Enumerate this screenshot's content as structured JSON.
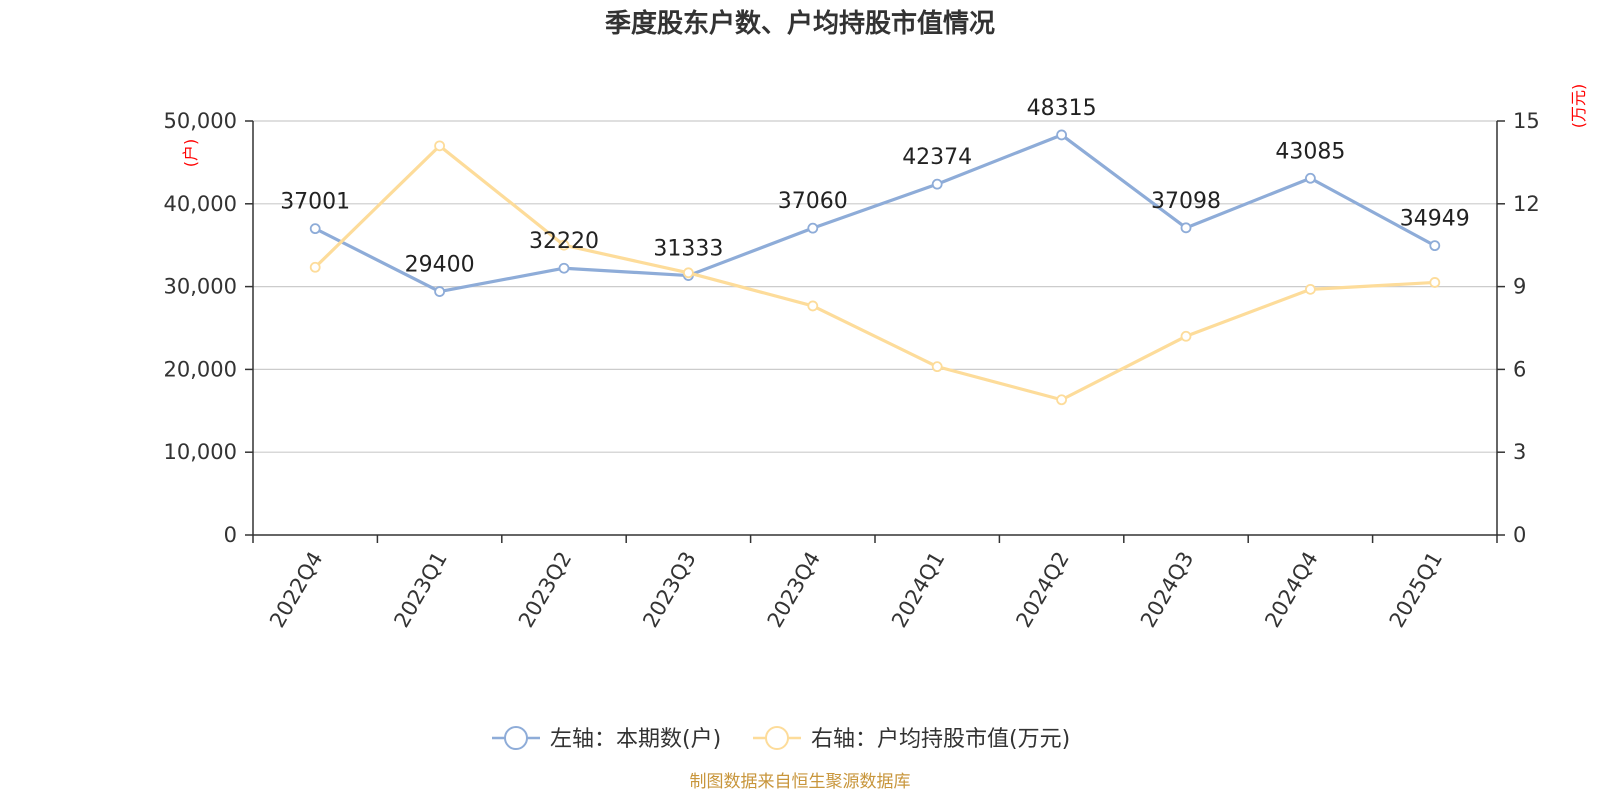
{
  "chart_data": {
    "type": "line",
    "title": "季度股东户数、户均持股市值情况",
    "categories": [
      "2022Q4",
      "2023Q1",
      "2023Q2",
      "2023Q3",
      "2023Q4",
      "2024Q1",
      "2024Q2",
      "2024Q3",
      "2024Q4",
      "2025Q1"
    ],
    "y_left": {
      "unit": "(户)",
      "ticks": [
        "0",
        "10,000",
        "20,000",
        "30,000",
        "40,000",
        "50,000"
      ],
      "lim": [
        0,
        50000
      ]
    },
    "y_right": {
      "unit": "(万元)",
      "ticks": [
        "0",
        "3",
        "6",
        "9",
        "12",
        "15"
      ],
      "lim": [
        0,
        15
      ]
    },
    "series": [
      {
        "name": "左轴：本期数(户)",
        "axis": "left",
        "color": "#8eacd8",
        "values": [
          37001,
          29400,
          32220,
          31333,
          37060,
          42374,
          48315,
          37098,
          43085,
          34949
        ],
        "labels": [
          "37001",
          "29400",
          "32220",
          "31333",
          "37060",
          "42374",
          "48315",
          "37098",
          "43085",
          "34949"
        ]
      },
      {
        "name": "右轴：户均持股市值(万元)",
        "axis": "right",
        "color": "#fddc9a",
        "values": [
          9.7,
          14.1,
          10.5,
          9.5,
          8.3,
          6.1,
          4.9,
          7.2,
          8.9,
          9.15
        ]
      }
    ],
    "grid": true,
    "legend": "bottom",
    "source": "制图数据来自恒生聚源数据库"
  }
}
